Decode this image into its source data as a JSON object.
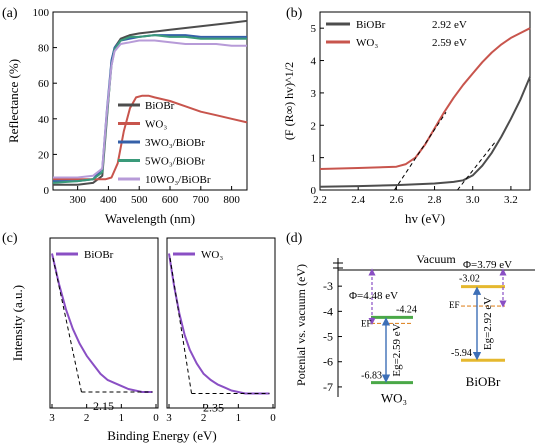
{
  "chart_data": [
    {
      "panel_label": "(a)",
      "type": "line",
      "xlabel": "Wavelength (nm)",
      "ylabel": "Reflectance (%)",
      "xlim": [
        220,
        850
      ],
      "ylim": [
        0,
        100
      ],
      "xticks": [
        "300",
        "400",
        "500",
        "600",
        "700",
        "800"
      ],
      "yticks": [
        "0",
        "20",
        "40",
        "60",
        "80",
        "100"
      ],
      "legend_position": "lower-right",
      "series": [
        {
          "name": "BiOBr",
          "color": "#4d4d4d",
          "x": [
            220,
            300,
            350,
            380,
            395,
            410,
            420,
            440,
            470,
            500,
            550,
            600,
            650,
            700,
            750,
            800,
            850
          ],
          "y": [
            3,
            3,
            4,
            8,
            40,
            72,
            80,
            85,
            87,
            88,
            89,
            90,
            91,
            92,
            93,
            94,
            95
          ]
        },
        {
          "name": "WO₃",
          "color": "#c8554d",
          "x": [
            220,
            300,
            360,
            390,
            410,
            430,
            450,
            470,
            490,
            510,
            530,
            550,
            600,
            650,
            700,
            750,
            800,
            850
          ],
          "y": [
            6,
            6,
            6,
            6,
            7,
            15,
            33,
            46,
            52,
            53,
            53,
            52,
            50,
            47,
            44,
            42,
            40,
            38
          ]
        },
        {
          "name": "3WO₃/BiOBr",
          "color": "#3560a8",
          "x": [
            220,
            300,
            350,
            380,
            395,
            410,
            420,
            440,
            470,
            500,
            550,
            600,
            650,
            700,
            750,
            800,
            850
          ],
          "y": [
            5,
            5,
            6,
            12,
            45,
            73,
            80,
            84,
            85,
            86,
            87,
            87,
            87,
            86,
            86,
            86,
            86
          ]
        },
        {
          "name": "5WO₃/BiOBr",
          "color": "#3a9a7a",
          "x": [
            220,
            300,
            350,
            380,
            395,
            410,
            420,
            440,
            470,
            500,
            550,
            600,
            650,
            700,
            750,
            800,
            850
          ],
          "y": [
            4,
            5,
            6,
            10,
            42,
            70,
            79,
            84,
            86,
            86,
            87,
            86,
            86,
            85,
            85,
            85,
            85
          ]
        },
        {
          "name": "10WO₃/BiOBr",
          "color": "#b79bd8",
          "x": [
            220,
            300,
            350,
            380,
            395,
            410,
            420,
            440,
            470,
            500,
            550,
            600,
            650,
            700,
            750,
            800,
            850
          ],
          "y": [
            7,
            7,
            8,
            12,
            44,
            70,
            78,
            82,
            83,
            84,
            84,
            83,
            82,
            82,
            82,
            81,
            81
          ]
        }
      ]
    },
    {
      "panel_label": "(b)",
      "type": "line",
      "xlabel": "hv (eV)",
      "ylabel": "(F (R∞) hv)^1/2",
      "xlim": [
        2.2,
        3.3
      ],
      "ylim": [
        0,
        5.5
      ],
      "xticks": [
        "2.2",
        "2.4",
        "2.6",
        "2.8",
        "3.0",
        "3.2"
      ],
      "yticks": [
        "0",
        "1",
        "2",
        "3",
        "4",
        "5"
      ],
      "legend_position": "top-left",
      "series": [
        {
          "name": "BiOBr",
          "value_label": "2.92 eV",
          "color": "#4d4d4d",
          "x": [
            2.2,
            2.4,
            2.6,
            2.8,
            2.9,
            2.95,
            3.0,
            3.05,
            3.1,
            3.15,
            3.2,
            3.25,
            3.3
          ],
          "y": [
            0.1,
            0.12,
            0.15,
            0.2,
            0.25,
            0.3,
            0.45,
            0.75,
            1.15,
            1.65,
            2.2,
            2.8,
            3.5
          ]
        },
        {
          "name": "WO₃",
          "value_label": "2.59 eV",
          "color": "#c8554d",
          "x": [
            2.2,
            2.4,
            2.6,
            2.65,
            2.7,
            2.75,
            2.8,
            2.85,
            2.9,
            2.95,
            3.0,
            3.05,
            3.1,
            3.15,
            3.2,
            3.25,
            3.3
          ],
          "y": [
            0.65,
            0.68,
            0.72,
            0.8,
            1.0,
            1.4,
            1.9,
            2.4,
            2.85,
            3.25,
            3.6,
            3.95,
            4.25,
            4.5,
            4.7,
            4.85,
            5.0
          ]
        }
      ],
      "tangent_intercepts": [
        2.59,
        2.92
      ]
    },
    {
      "panel_label": "(c)",
      "type": "line",
      "xlabel": "Binding Energy (eV)",
      "ylabel": "Intensity (a.u.)",
      "subplots": [
        {
          "name": "BiOBr",
          "value_label": "2.15",
          "xlim": [
            3,
            0
          ],
          "xticks": [
            "3",
            "2",
            "1",
            "0"
          ],
          "x": [
            3,
            2.8,
            2.6,
            2.4,
            2.2,
            2.0,
            1.8,
            1.6,
            1.4,
            1.2,
            1.0,
            0.8,
            0.6,
            0.4,
            0.2,
            0.1
          ],
          "y": [
            1.0,
            0.8,
            0.63,
            0.5,
            0.4,
            0.32,
            0.26,
            0.2,
            0.16,
            0.14,
            0.12,
            0.1,
            0.09,
            0.08,
            0.08,
            0.08
          ]
        },
        {
          "name": "WO₃",
          "value_label": "2.35",
          "xlim": [
            3,
            0
          ],
          "xticks": [
            "3",
            "2",
            "1",
            "0"
          ],
          "x": [
            3,
            2.85,
            2.7,
            2.55,
            2.4,
            2.2,
            2.0,
            1.8,
            1.6,
            1.4,
            1.2,
            1.0,
            0.8,
            0.6,
            0.4,
            0.2,
            0.1
          ],
          "y": [
            1.0,
            0.78,
            0.6,
            0.46,
            0.36,
            0.27,
            0.2,
            0.16,
            0.13,
            0.11,
            0.09,
            0.08,
            0.07,
            0.07,
            0.07,
            0.07,
            0.07
          ]
        }
      ]
    },
    {
      "panel_label": "(d)",
      "type": "diagram",
      "ylabel": "Potenial vs. vacuum (eV)",
      "top_label": "Vacuum",
      "ylim": [
        -7.4,
        -2.2
      ],
      "yticks": [
        "-3",
        "-4",
        "-5",
        "-6",
        "-7"
      ],
      "materials": [
        {
          "name": "WO₃",
          "cb": -4.24,
          "vb": -6.83,
          "ef": -4.48,
          "cb_label": "-4.24",
          "vb_label": "-6.83",
          "phi_label": "Φ=4.48 eV",
          "eg_label": "Eg=2.59 eV",
          "ef_label": "EF",
          "band_color": "#4aa847"
        },
        {
          "name": "BiOBr",
          "cb": -3.02,
          "vb": -5.94,
          "ef": -3.79,
          "cb_label": "-3.02",
          "vb_label": "-5.94",
          "phi_label": "Φ=3.79 eV",
          "eg_label": "Eg=2.92 eV",
          "ef_label": "EF",
          "band_color": "#e5b82e"
        }
      ]
    }
  ]
}
